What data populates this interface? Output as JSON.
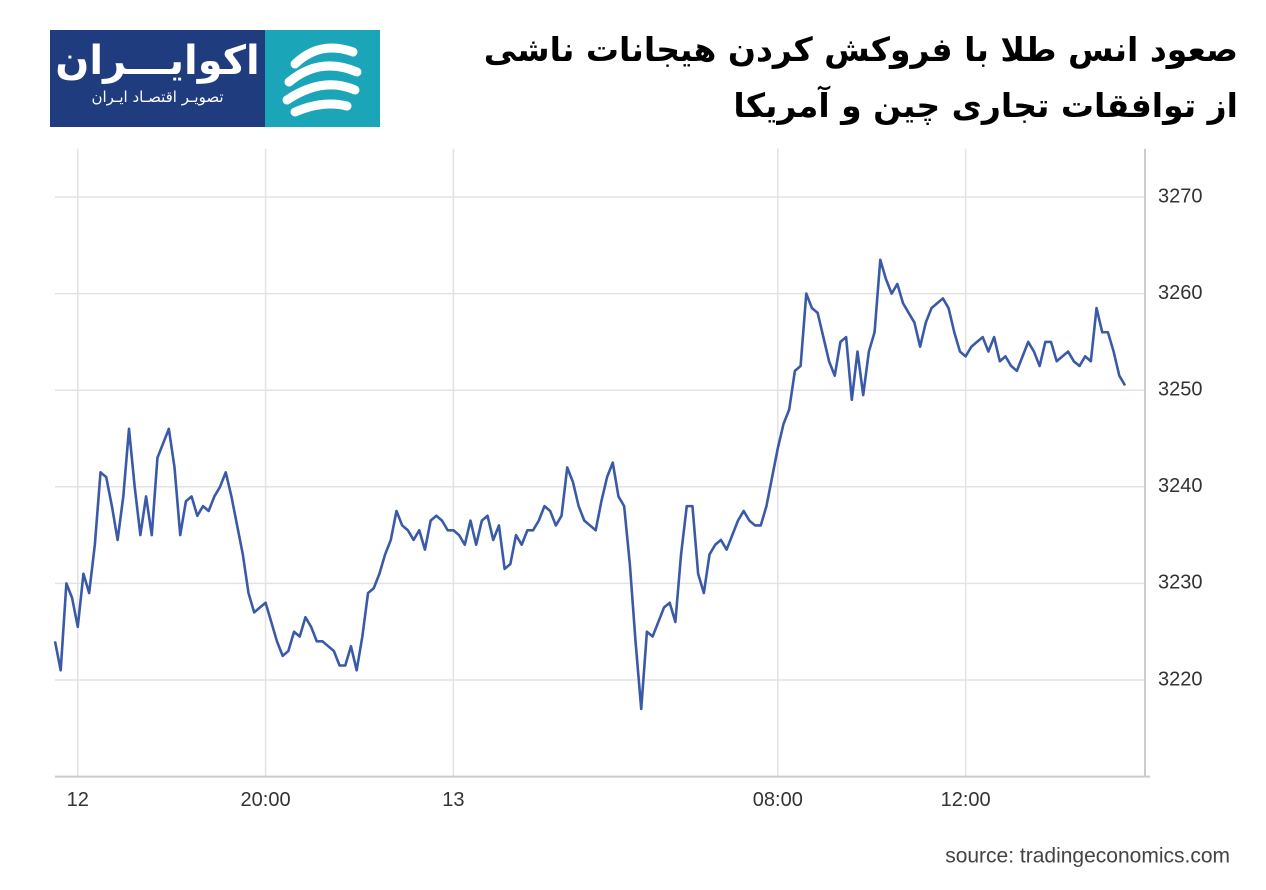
{
  "logo": {
    "name": "اکوایـــران",
    "tagline": "تصویـر اقتصـاد ایـران"
  },
  "chart_data": {
    "type": "line",
    "title": [
      "صعود انس طلا با فروکش کردن هیجانات ناشی",
      "از توافقات تجاری چین و آمریکا"
    ],
    "source": "source: tradingeconomics.com",
    "color": "#3a5aa8",
    "grid": true,
    "ylim": [
      3210,
      3275
    ],
    "yticks": [
      3220,
      3230,
      3240,
      3250,
      3260,
      3270
    ],
    "categories": [
      null,
      null,
      null,
      null,
      "12",
      null,
      null,
      null,
      null,
      null,
      null,
      null,
      null,
      null,
      null,
      null,
      null,
      null,
      null,
      null,
      null,
      null,
      null,
      null,
      null,
      null,
      null,
      null,
      null,
      null,
      null,
      null,
      null,
      null,
      null,
      null,
      null,
      "20:00",
      null,
      null,
      null,
      null,
      null,
      null,
      null,
      null,
      null,
      null,
      null,
      null,
      null,
      null,
      null,
      null,
      null,
      null,
      null,
      null,
      null,
      null,
      null,
      null,
      null,
      null,
      null,
      null,
      null,
      null,
      null,
      null,
      "13",
      null,
      null,
      null,
      null,
      null,
      null,
      null,
      null,
      null,
      null,
      null,
      null,
      null,
      null,
      null,
      null,
      null,
      null,
      null,
      null,
      null,
      null,
      null,
      null,
      null,
      null,
      null,
      null,
      null,
      null,
      null,
      null,
      null,
      null,
      null,
      null,
      null,
      null,
      null,
      null,
      null,
      null,
      null,
      null,
      null,
      null,
      null,
      null,
      null,
      null,
      null,
      null,
      null,
      null,
      null,
      null,
      "08:00",
      null,
      null,
      null,
      null,
      null,
      null,
      null,
      null,
      null,
      null,
      null,
      null,
      null,
      null,
      null,
      null,
      null,
      null,
      null,
      null,
      null,
      null,
      null,
      null,
      null,
      null,
      null,
      null,
      null,
      null,
      null,
      null,
      "12:00",
      null,
      null,
      null,
      null,
      null,
      null,
      null,
      null,
      null,
      null,
      null,
      null,
      null,
      null,
      null,
      null,
      null,
      null,
      null,
      null,
      null,
      null,
      null,
      null,
      null,
      null,
      null,
      null
    ],
    "values": [
      3224,
      3221,
      3230,
      3228.5,
      3225.5,
      3231,
      3229,
      3234,
      3241.5,
      3241,
      3238,
      3234.5,
      3239,
      3246,
      3240,
      3235,
      3239,
      3235,
      3243,
      3244.5,
      3246,
      3242,
      3235,
      3238.5,
      3239,
      3237,
      3238,
      3237.5,
      3239,
      3240,
      3241.5,
      3239,
      3236,
      3233,
      3229,
      3227,
      3227.5,
      3228,
      3226,
      3224,
      3222.5,
      3223,
      3225,
      3224.5,
      3226.5,
      3225.5,
      3224,
      3224,
      3223.5,
      3223,
      3221.5,
      3221.5,
      3223.5,
      3221,
      3224.5,
      3229,
      3229.5,
      3231,
      3233,
      3234.5,
      3237.5,
      3236,
      3235.5,
      3234.5,
      3235.5,
      3233.5,
      3236.5,
      3237,
      3236.5,
      3235.5,
      3235.5,
      3235,
      3234,
      3236.5,
      3234,
      3236.5,
      3237,
      3234.5,
      3236,
      3231.5,
      3232,
      3235,
      3234,
      3235.5,
      3235.5,
      3236.5,
      3238,
      3237.5,
      3236,
      3237,
      3242,
      3240.5,
      3238,
      3236.5,
      3236,
      3235.5,
      3238.5,
      3241,
      3242.5,
      3239,
      3238,
      3232,
      3224,
      3217,
      3225,
      3224.5,
      3226,
      3227.5,
      3228,
      3226,
      3233,
      3238,
      3238,
      3231,
      3229,
      3233,
      3234,
      3234.5,
      3233.5,
      3235,
      3236.5,
      3237.5,
      3236.5,
      3236,
      3236,
      3238,
      3241,
      3244,
      3246.5,
      3248,
      3252,
      3252.5,
      3260,
      3258.5,
      3258,
      3255.5,
      3253,
      3251.5,
      3255,
      3255.5,
      3249,
      3254,
      3249.5,
      3254,
      3256,
      3263.5,
      3261.5,
      3260,
      3261,
      3259,
      3258,
      3257,
      3254.5,
      3257,
      3258.5,
      3259,
      3259.5,
      3258.5,
      3256,
      3254,
      3253.5,
      3254.5,
      3255,
      3255.5,
      3254,
      3255.5,
      3253,
      3253.5,
      3252.5,
      3252,
      3253.5,
      3255,
      3254,
      3252.5,
      3255,
      3255,
      3253,
      3253.5,
      3254,
      3253,
      3252.5,
      3253.5,
      3253,
      3258.5,
      3256,
      3256,
      3254,
      3251.5,
      3250.5
    ]
  }
}
